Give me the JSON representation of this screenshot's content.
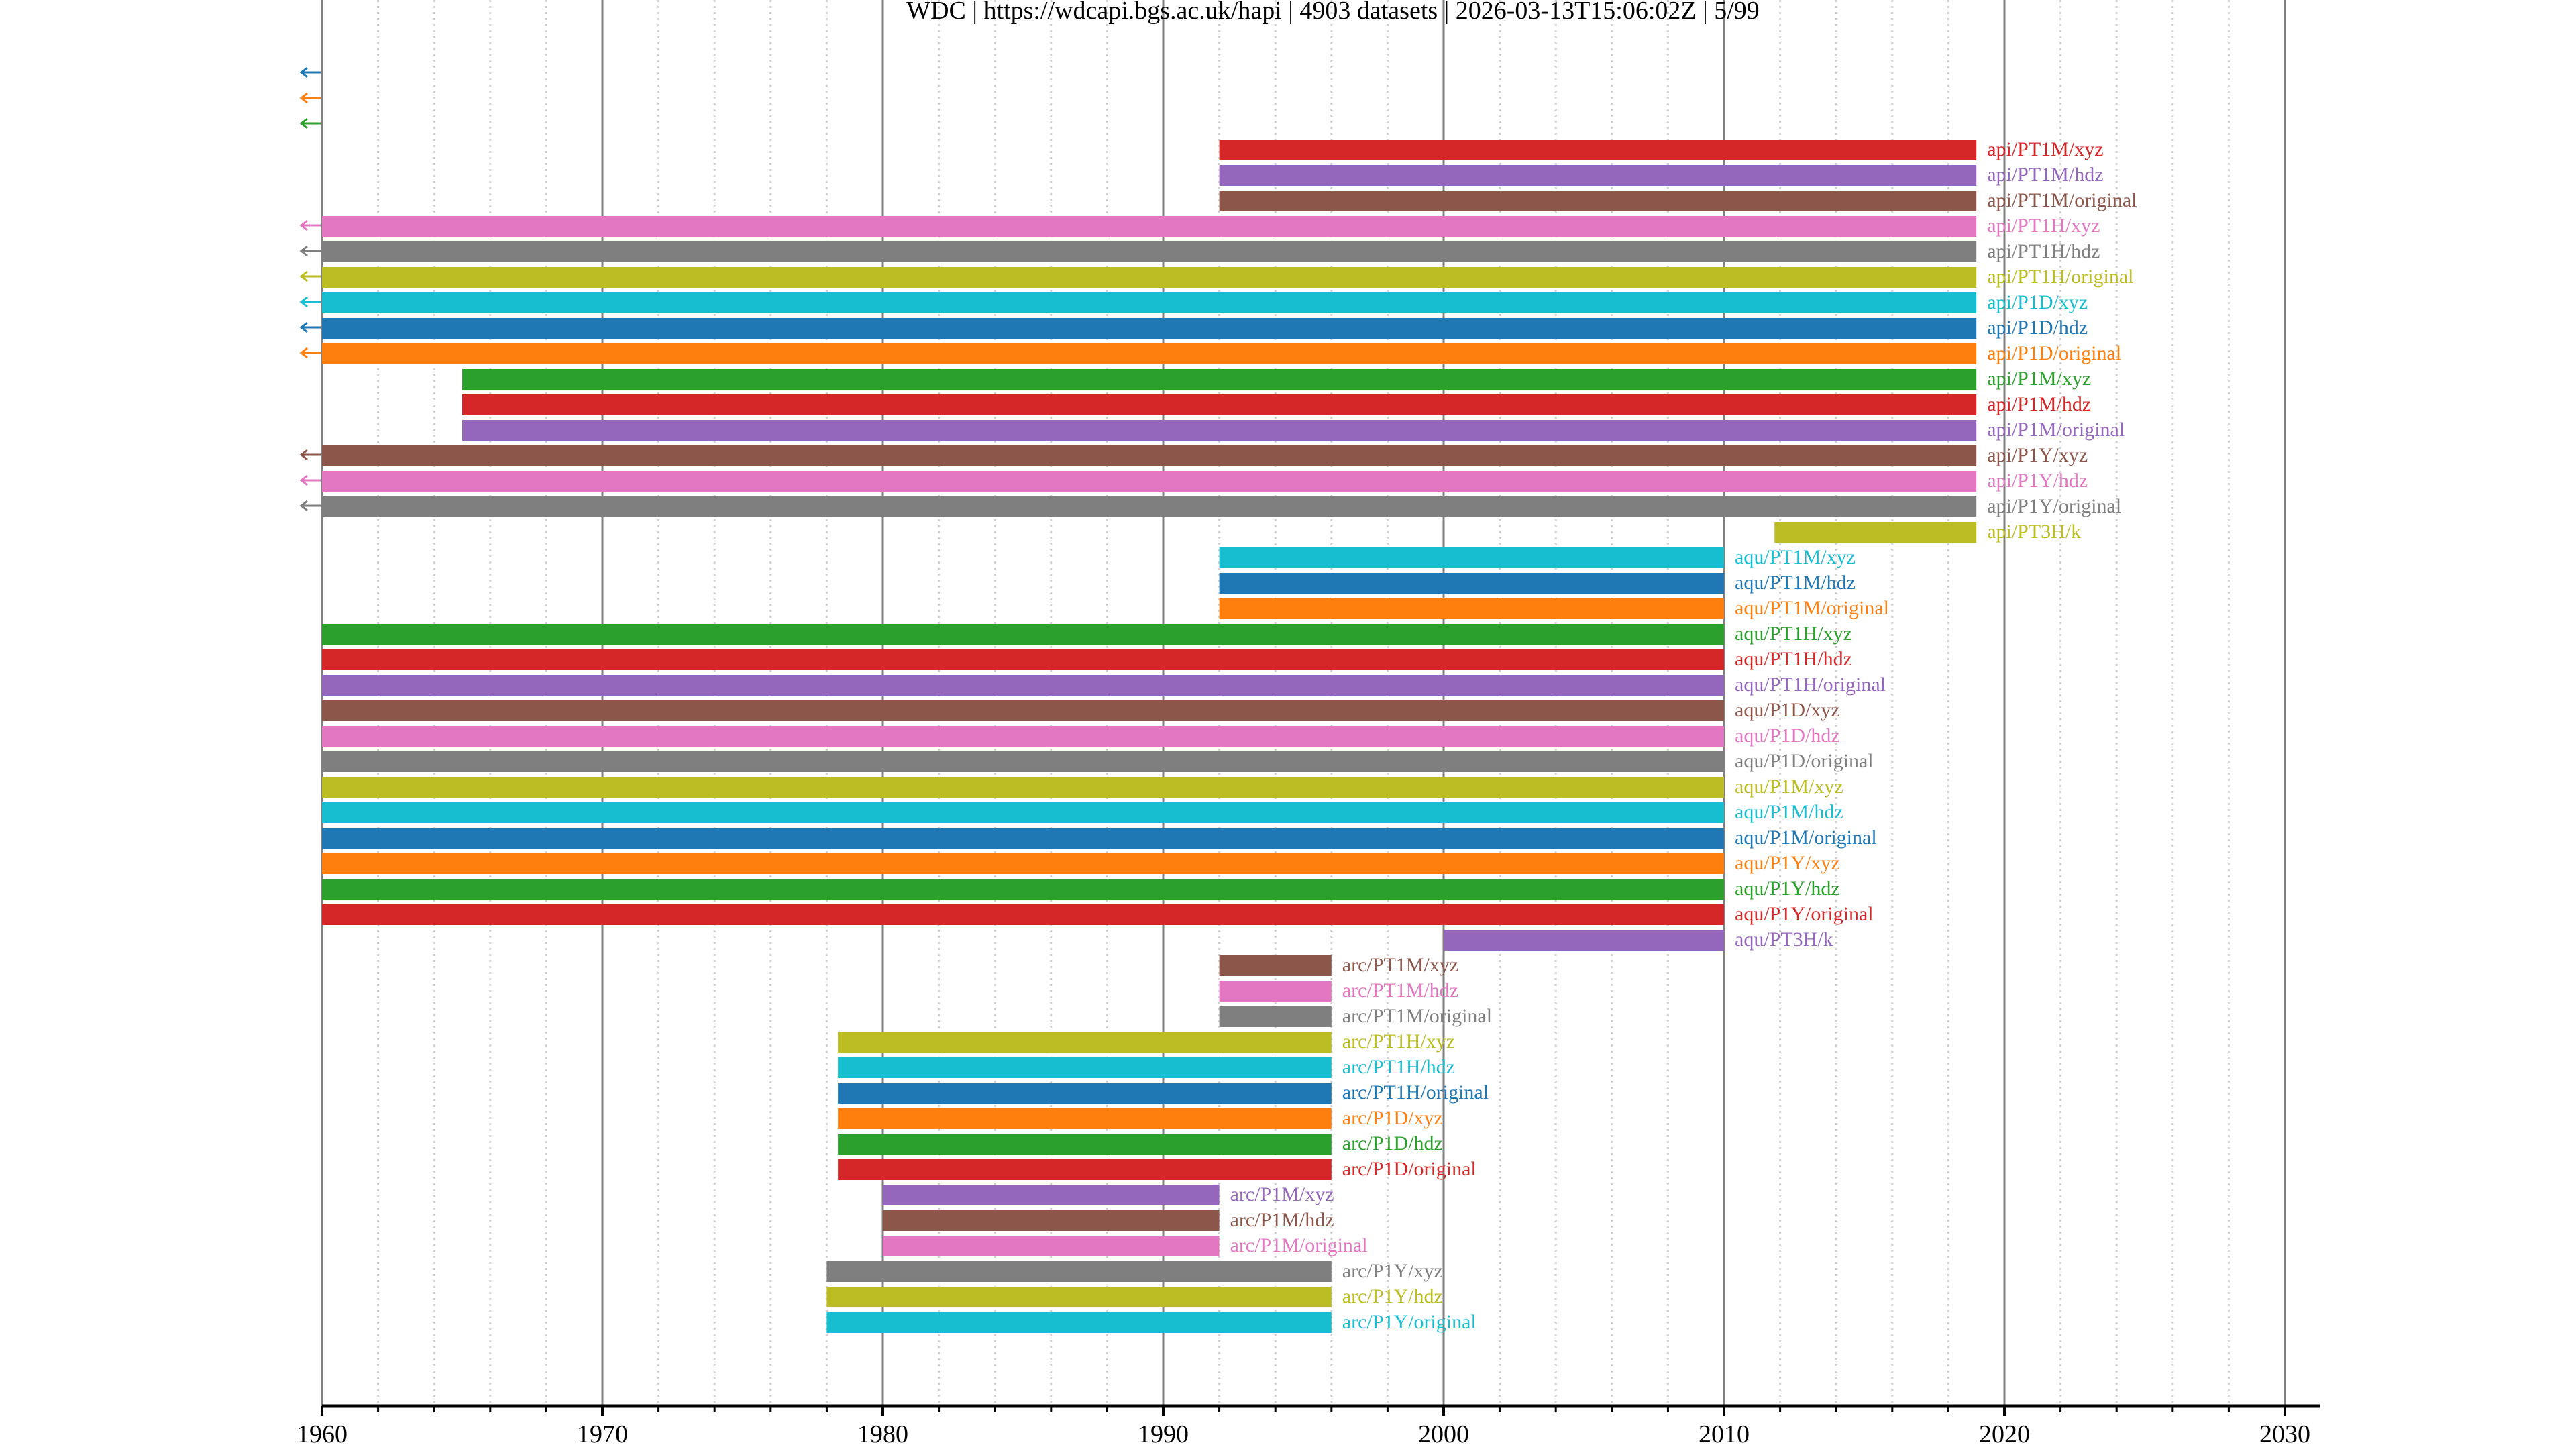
{
  "chart_data": {
    "type": "timeline",
    "title": "WDC | https://wdcapi.bgs.ac.uk/hapi | 4903 datasets | 2026-03-13T15:06:02Z | 5/99",
    "xlabel": "",
    "ylabel": "",
    "xlim": [
      1960,
      2031.5
    ],
    "x_ticks": [
      1960,
      1970,
      1980,
      1990,
      2000,
      2010,
      2020,
      2030
    ],
    "x_tick_labels": [
      "1960",
      "1970",
      "1980",
      "1990",
      "2000",
      "2010",
      "2020",
      "2030"
    ],
    "minor_tick_step": 2,
    "grid": true,
    "palette": [
      "#1f77b4",
      "#ff7f0e",
      "#2ca02c",
      "#d62728",
      "#9467bd",
      "#8c564b",
      "#e377c2",
      "#7f7f7f",
      "#bcbd22",
      "#17becf"
    ],
    "rows": [
      {
        "label": "",
        "start": null,
        "end": null,
        "before_range": true
      },
      {
        "label": "",
        "start": null,
        "end": null,
        "before_range": true
      },
      {
        "label": "",
        "start": null,
        "end": null,
        "before_range": true
      },
      {
        "label": "api/PT1M/xyz",
        "start": 1992,
        "end": 2019,
        "before_range": false
      },
      {
        "label": "api/PT1M/hdz",
        "start": 1992,
        "end": 2019,
        "before_range": false
      },
      {
        "label": "api/PT1M/original",
        "start": 1992,
        "end": 2019,
        "before_range": false
      },
      {
        "label": "api/PT1H/xyz",
        "start": 1960,
        "end": 2019,
        "before_range": true
      },
      {
        "label": "api/PT1H/hdz",
        "start": 1960,
        "end": 2019,
        "before_range": true
      },
      {
        "label": "api/PT1H/original",
        "start": 1960,
        "end": 2019,
        "before_range": true
      },
      {
        "label": "api/P1D/xyz",
        "start": 1960,
        "end": 2019,
        "before_range": true
      },
      {
        "label": "api/P1D/hdz",
        "start": 1960,
        "end": 2019,
        "before_range": true
      },
      {
        "label": "api/P1D/original",
        "start": 1960,
        "end": 2019,
        "before_range": true
      },
      {
        "label": "api/P1M/xyz",
        "start": 1965,
        "end": 2019,
        "before_range": false
      },
      {
        "label": "api/P1M/hdz",
        "start": 1965,
        "end": 2019,
        "before_range": false
      },
      {
        "label": "api/P1M/original",
        "start": 1965,
        "end": 2019,
        "before_range": false
      },
      {
        "label": "api/P1Y/xyz",
        "start": 1960,
        "end": 2019,
        "before_range": true
      },
      {
        "label": "api/P1Y/hdz",
        "start": 1960,
        "end": 2019,
        "before_range": true
      },
      {
        "label": "api/P1Y/original",
        "start": 1960,
        "end": 2019,
        "before_range": true
      },
      {
        "label": "api/PT3H/k",
        "start": 2011.8,
        "end": 2019,
        "before_range": false
      },
      {
        "label": "aqu/PT1M/xyz",
        "start": 1992,
        "end": 2010,
        "before_range": false
      },
      {
        "label": "aqu/PT1M/hdz",
        "start": 1992,
        "end": 2010,
        "before_range": false
      },
      {
        "label": "aqu/PT1M/original",
        "start": 1992,
        "end": 2010,
        "before_range": false
      },
      {
        "label": "aqu/PT1H/xyz",
        "start": 1960,
        "end": 2010,
        "before_range": false
      },
      {
        "label": "aqu/PT1H/hdz",
        "start": 1960,
        "end": 2010,
        "before_range": false
      },
      {
        "label": "aqu/PT1H/original",
        "start": 1960,
        "end": 2010,
        "before_range": false
      },
      {
        "label": "aqu/P1D/xyz",
        "start": 1960,
        "end": 2010,
        "before_range": false
      },
      {
        "label": "aqu/P1D/hdz",
        "start": 1960,
        "end": 2010,
        "before_range": false
      },
      {
        "label": "aqu/P1D/original",
        "start": 1960,
        "end": 2010,
        "before_range": false
      },
      {
        "label": "aqu/P1M/xyz",
        "start": 1960,
        "end": 2010,
        "before_range": false
      },
      {
        "label": "aqu/P1M/hdz",
        "start": 1960,
        "end": 2010,
        "before_range": false
      },
      {
        "label": "aqu/P1M/original",
        "start": 1960,
        "end": 2010,
        "before_range": false
      },
      {
        "label": "aqu/P1Y/xyz",
        "start": 1960,
        "end": 2010,
        "before_range": false
      },
      {
        "label": "aqu/P1Y/hdz",
        "start": 1960,
        "end": 2010,
        "before_range": false
      },
      {
        "label": "aqu/P1Y/original",
        "start": 1960,
        "end": 2010,
        "before_range": false
      },
      {
        "label": "aqu/PT3H/k",
        "start": 2000,
        "end": 2010,
        "before_range": false
      },
      {
        "label": "arc/PT1M/xyz",
        "start": 1992,
        "end": 1996,
        "before_range": false
      },
      {
        "label": "arc/PT1M/hdz",
        "start": 1992,
        "end": 1996,
        "before_range": false
      },
      {
        "label": "arc/PT1M/original",
        "start": 1992,
        "end": 1996,
        "before_range": false
      },
      {
        "label": "arc/PT1H/xyz",
        "start": 1978.4,
        "end": 1996,
        "before_range": false
      },
      {
        "label": "arc/PT1H/hdz",
        "start": 1978.4,
        "end": 1996,
        "before_range": false
      },
      {
        "label": "arc/PT1H/original",
        "start": 1978.4,
        "end": 1996,
        "before_range": false
      },
      {
        "label": "arc/P1D/xyz",
        "start": 1978.4,
        "end": 1996,
        "before_range": false
      },
      {
        "label": "arc/P1D/hdz",
        "start": 1978.4,
        "end": 1996,
        "before_range": false
      },
      {
        "label": "arc/P1D/original",
        "start": 1978.4,
        "end": 1996,
        "before_range": false
      },
      {
        "label": "arc/P1M/xyz",
        "start": 1980,
        "end": 1992,
        "before_range": false
      },
      {
        "label": "arc/P1M/hdz",
        "start": 1980,
        "end": 1992,
        "before_range": false
      },
      {
        "label": "arc/P1M/original",
        "start": 1980,
        "end": 1992,
        "before_range": false
      },
      {
        "label": "arc/P1Y/xyz",
        "start": 1978,
        "end": 1996,
        "before_range": false
      },
      {
        "label": "arc/P1Y/hdz",
        "start": 1978,
        "end": 1996,
        "before_range": false
      },
      {
        "label": "arc/P1Y/original",
        "start": 1978,
        "end": 1996,
        "before_range": false
      }
    ]
  }
}
